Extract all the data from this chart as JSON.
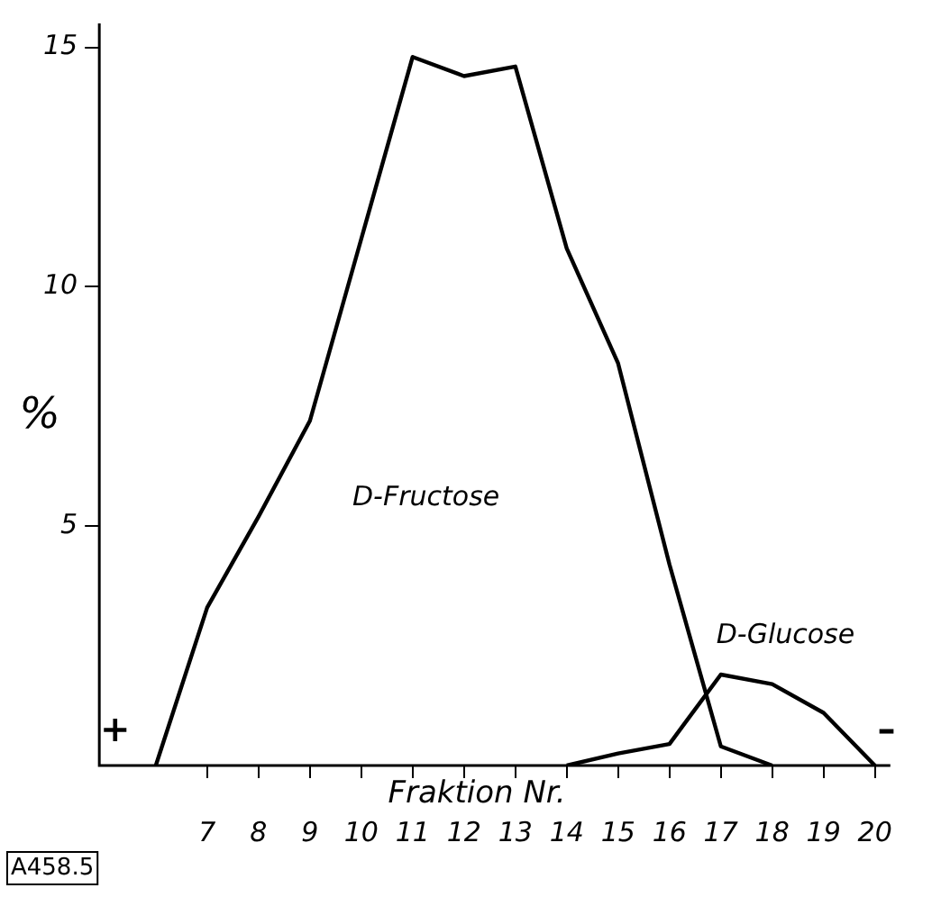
{
  "chart_data": {
    "type": "line",
    "xlabel": "Fraktion Nr.",
    "ylabel": "%",
    "xlim": [
      4.9,
      20.3
    ],
    "xticks": [
      7,
      8,
      9,
      10,
      11,
      12,
      13,
      14,
      15,
      16,
      17,
      18,
      19,
      20
    ],
    "ylim": [
      0,
      15.5
    ],
    "yticks": [
      5,
      10,
      15
    ],
    "grid": false,
    "legend": false,
    "marker": "none",
    "line_style": "solid",
    "series": [
      {
        "name": "D-Fructose",
        "color": "#000000",
        "x": [
          6,
          7,
          8,
          9,
          10,
          11,
          12,
          13,
          14,
          15,
          16,
          17,
          18
        ],
        "values": [
          0,
          3.3,
          5.2,
          7.2,
          11,
          14.8,
          14.4,
          14.6,
          10.8,
          8.4,
          4.2,
          0.4,
          0
        ]
      },
      {
        "name": "D-Glucose",
        "color": "#000000",
        "x": [
          14,
          15,
          16,
          17,
          18,
          19,
          20
        ],
        "values": [
          0,
          0.25,
          0.45,
          1.9,
          1.7,
          1.1,
          0
        ]
      }
    ],
    "annotations": [
      "+",
      "–",
      "A458.5"
    ]
  }
}
